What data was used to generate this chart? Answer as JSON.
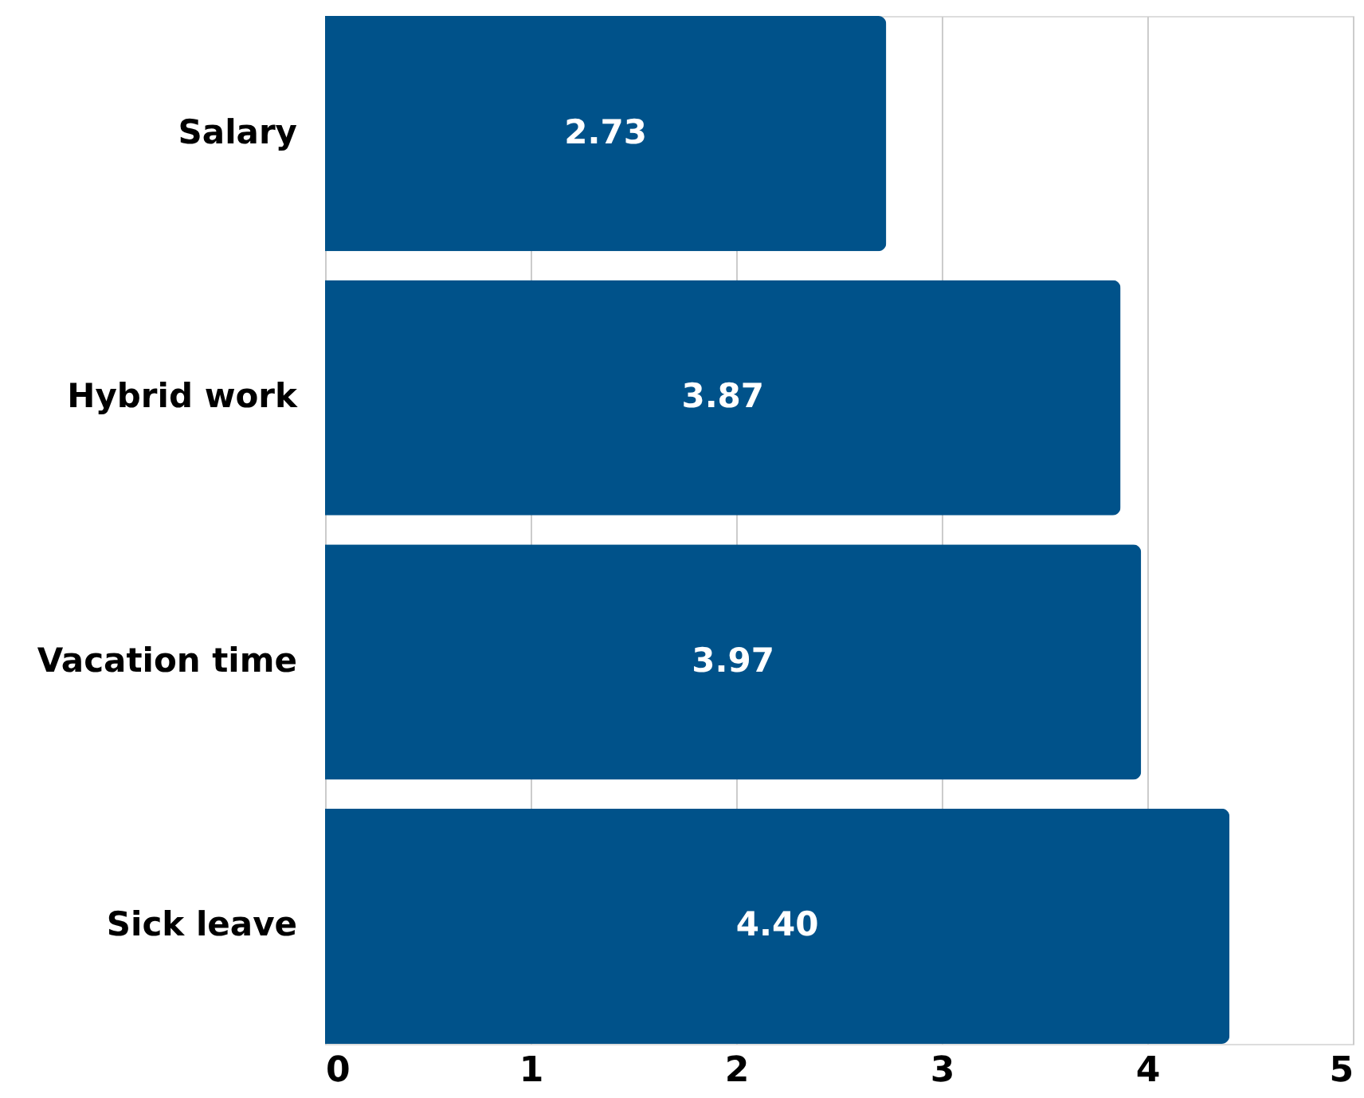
{
  "chart_data": {
    "type": "bar",
    "orientation": "horizontal",
    "categories": [
      "Salary",
      "Hybrid work",
      "Vacation time",
      "Sick leave"
    ],
    "values": [
      2.73,
      3.87,
      3.97,
      4.4
    ],
    "value_labels": [
      "2.73",
      "3.87",
      "3.97",
      "4.40"
    ],
    "color": "#00528a",
    "xlim": [
      0,
      5
    ],
    "xticks": [
      0,
      1,
      2,
      3,
      4,
      5
    ],
    "grid": "x"
  }
}
